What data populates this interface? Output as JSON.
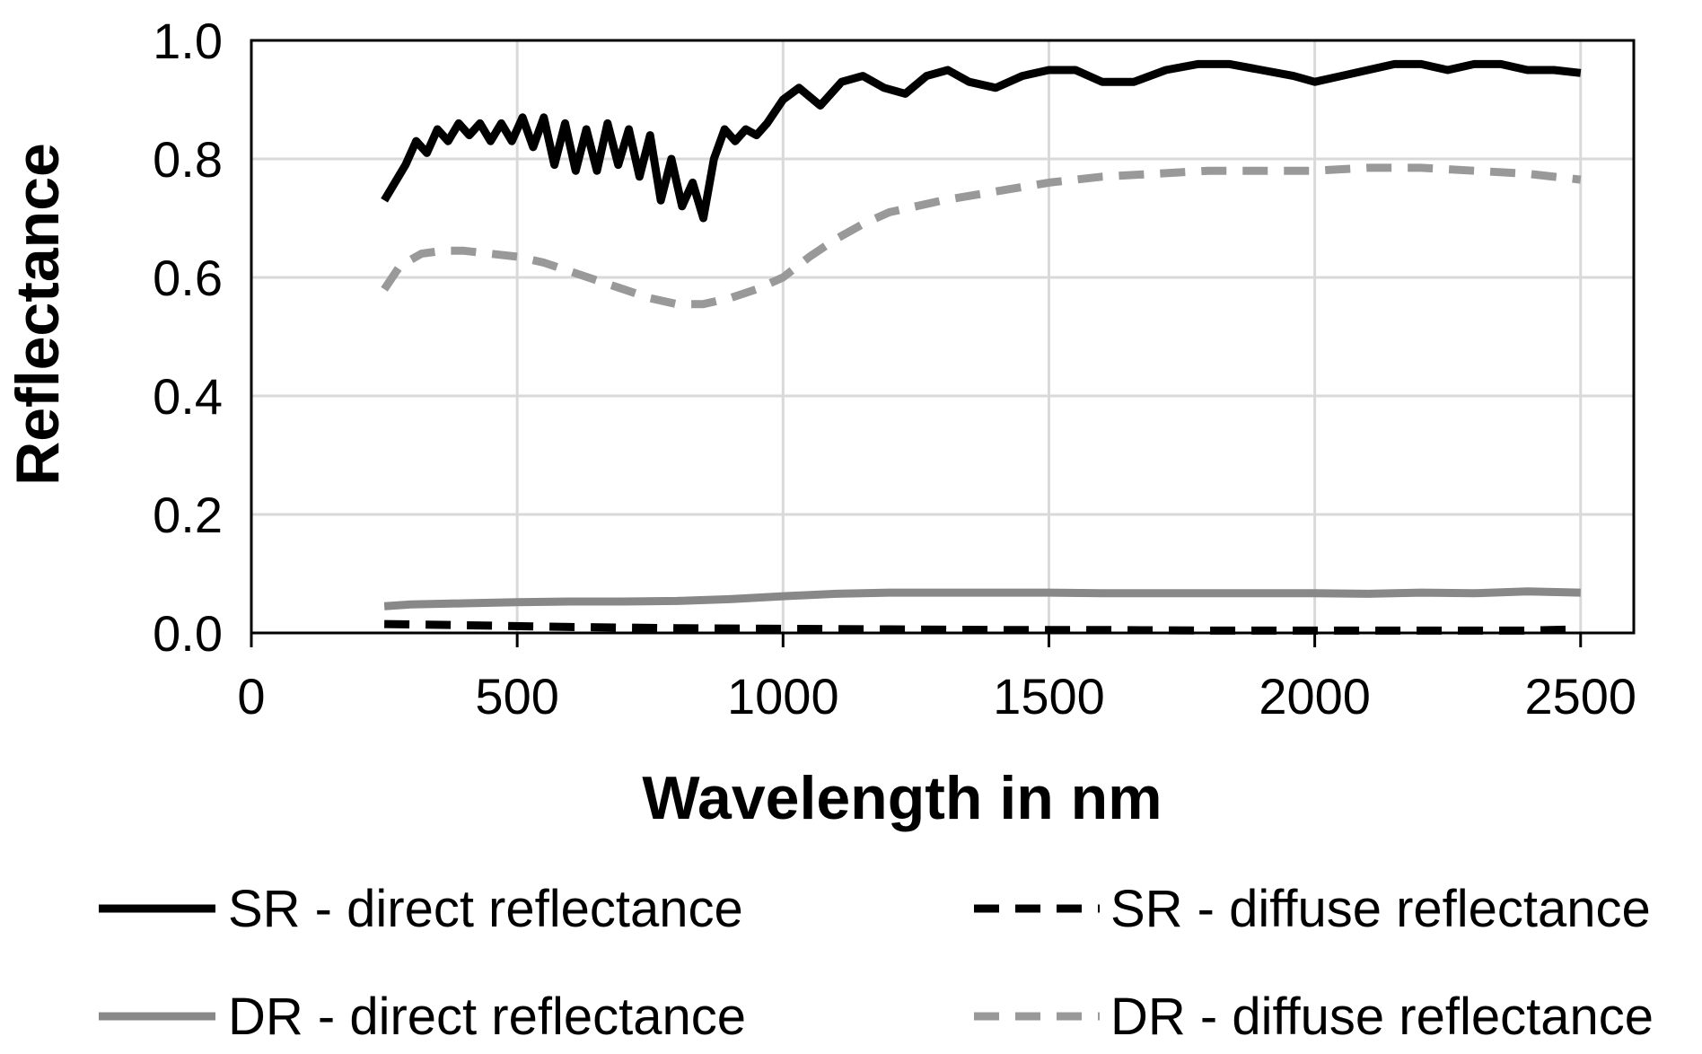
{
  "chart_data": {
    "type": "line",
    "title": "",
    "xlabel": "Wavelength in nm",
    "ylabel": "Reflectance",
    "xlim": [
      0,
      2600
    ],
    "ylim": [
      0,
      1.0
    ],
    "xticks": [
      0,
      500,
      1000,
      1500,
      2000,
      2500
    ],
    "yticks": [
      0.0,
      0.2,
      0.4,
      0.6,
      0.8,
      1.0
    ],
    "xtick_labels": [
      "0",
      "500",
      "1000",
      "1500",
      "2000",
      "2500"
    ],
    "ytick_labels": [
      "0.0",
      "0.2",
      "0.4",
      "0.6",
      "0.8",
      "1.0"
    ],
    "grid": true,
    "legend_position": "bottom",
    "series": [
      {
        "name": "SR - direct reflectance",
        "color": "#000000",
        "style": "solid",
        "x": [
          250,
          270,
          290,
          310,
          330,
          350,
          370,
          390,
          410,
          430,
          450,
          470,
          490,
          510,
          530,
          550,
          570,
          590,
          610,
          630,
          650,
          670,
          690,
          710,
          730,
          750,
          770,
          790,
          810,
          830,
          850,
          870,
          890,
          910,
          930,
          950,
          970,
          1000,
          1030,
          1070,
          1110,
          1150,
          1190,
          1230,
          1270,
          1310,
          1350,
          1400,
          1450,
          1500,
          1550,
          1600,
          1660,
          1720,
          1780,
          1840,
          1900,
          1960,
          2000,
          2050,
          2100,
          2150,
          2200,
          2250,
          2300,
          2350,
          2400,
          2450,
          2500
        ],
        "y": [
          0.73,
          0.76,
          0.79,
          0.83,
          0.81,
          0.85,
          0.83,
          0.86,
          0.84,
          0.86,
          0.83,
          0.86,
          0.83,
          0.87,
          0.82,
          0.87,
          0.79,
          0.86,
          0.78,
          0.85,
          0.78,
          0.86,
          0.79,
          0.85,
          0.77,
          0.84,
          0.73,
          0.8,
          0.72,
          0.76,
          0.7,
          0.8,
          0.85,
          0.83,
          0.85,
          0.84,
          0.86,
          0.9,
          0.92,
          0.89,
          0.93,
          0.94,
          0.92,
          0.91,
          0.94,
          0.95,
          0.93,
          0.92,
          0.94,
          0.95,
          0.95,
          0.93,
          0.93,
          0.95,
          0.96,
          0.96,
          0.95,
          0.94,
          0.93,
          0.94,
          0.95,
          0.96,
          0.96,
          0.95,
          0.96,
          0.96,
          0.95,
          0.95,
          0.945
        ]
      },
      {
        "name": "SR - diffuse reflectance",
        "color": "#000000",
        "style": "dashed",
        "x": [
          250,
          400,
          600,
          800,
          1000,
          1200,
          1400,
          1600,
          1800,
          2000,
          2200,
          2400,
          2500
        ],
        "y": [
          0.015,
          0.013,
          0.01,
          0.008,
          0.007,
          0.006,
          0.005,
          0.005,
          0.004,
          0.004,
          0.004,
          0.004,
          0.006
        ]
      },
      {
        "name": "DR - direct reflectance",
        "color": "#888888",
        "style": "solid",
        "x": [
          250,
          300,
          400,
          500,
          600,
          700,
          800,
          900,
          1000,
          1100,
          1200,
          1300,
          1400,
          1500,
          1600,
          1700,
          1800,
          1900,
          2000,
          2100,
          2200,
          2300,
          2400,
          2500
        ],
        "y": [
          0.045,
          0.048,
          0.05,
          0.052,
          0.053,
          0.053,
          0.054,
          0.057,
          0.062,
          0.066,
          0.068,
          0.068,
          0.068,
          0.068,
          0.067,
          0.067,
          0.067,
          0.067,
          0.067,
          0.066,
          0.068,
          0.067,
          0.07,
          0.068
        ]
      },
      {
        "name": "DR - diffuse reflectance",
        "color": "#999999",
        "style": "dashed",
        "x": [
          250,
          280,
          320,
          360,
          400,
          450,
          500,
          550,
          600,
          650,
          700,
          750,
          800,
          850,
          900,
          950,
          1000,
          1050,
          1100,
          1150,
          1200,
          1300,
          1400,
          1500,
          1600,
          1700,
          1800,
          1900,
          2000,
          2100,
          2200,
          2300,
          2400,
          2500
        ],
        "y": [
          0.58,
          0.62,
          0.64,
          0.645,
          0.645,
          0.64,
          0.635,
          0.625,
          0.61,
          0.595,
          0.58,
          0.565,
          0.555,
          0.555,
          0.565,
          0.58,
          0.6,
          0.635,
          0.665,
          0.69,
          0.71,
          0.73,
          0.745,
          0.76,
          0.77,
          0.775,
          0.78,
          0.78,
          0.78,
          0.785,
          0.785,
          0.78,
          0.775,
          0.765
        ]
      }
    ]
  }
}
